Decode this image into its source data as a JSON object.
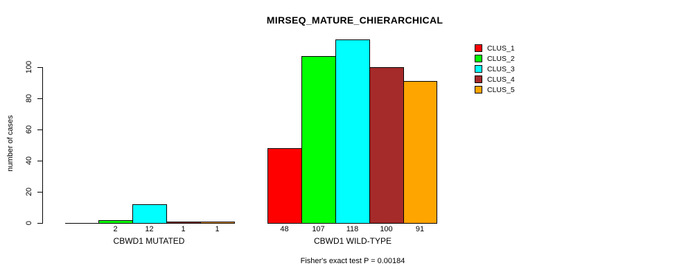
{
  "chart_data": {
    "type": "bar",
    "title": "MIRSEQ_MATURE_CHIERARCHICAL",
    "ylabel": "number of cases",
    "footnote": "Fisher's exact test P = 0.00184",
    "y_axis": {
      "ticks": [
        0,
        20,
        40,
        60,
        80,
        100
      ],
      "range": [
        0,
        118
      ]
    },
    "grid": false,
    "legend": {
      "position": "right"
    },
    "series": [
      {
        "name": "CLUS_1",
        "color": "#FF0000"
      },
      {
        "name": "CLUS_2",
        "color": "#00FF00"
      },
      {
        "name": "CLUS_3",
        "color": "#00FFFF"
      },
      {
        "name": "CLUS_4",
        "color": "#A52A2A"
      },
      {
        "name": "CLUS_5",
        "color": "#FFA500"
      }
    ],
    "groups": [
      {
        "label": "CBWD1 MUTATED",
        "values": [
          0,
          2,
          12,
          1,
          1
        ],
        "bar_labels": [
          "",
          "2",
          "12",
          "1",
          "1"
        ]
      },
      {
        "label": "CBWD1 WILD-TYPE",
        "values": [
          48,
          107,
          118,
          100,
          91
        ],
        "bar_labels": [
          "48",
          "107",
          "118",
          "100",
          "91"
        ]
      }
    ]
  }
}
